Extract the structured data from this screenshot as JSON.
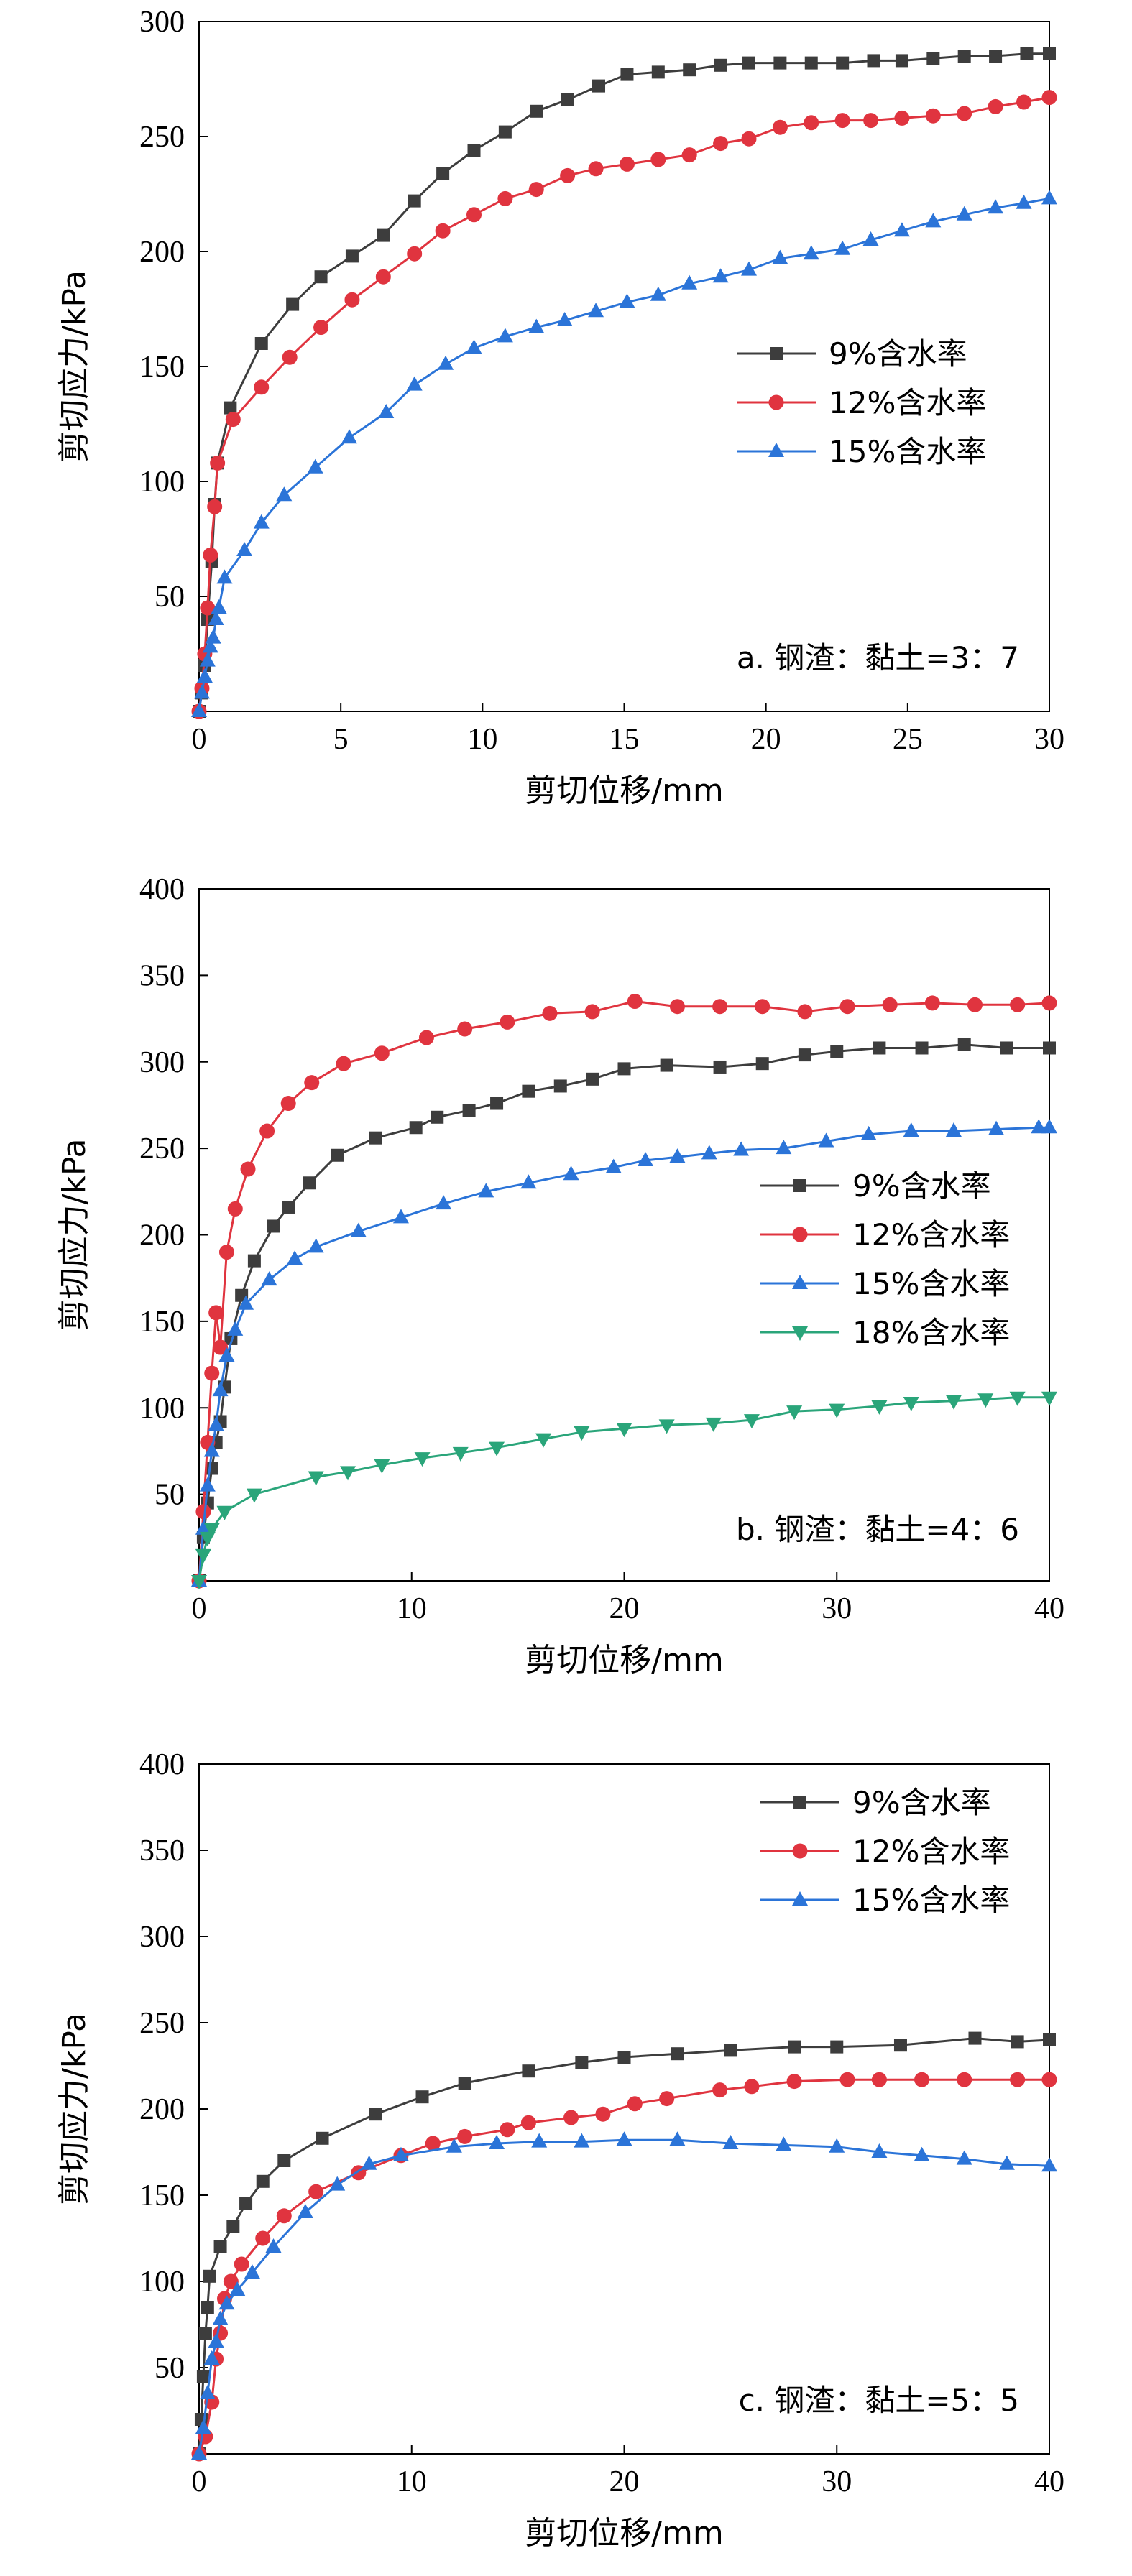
{
  "chart_data": [
    {
      "type": "line",
      "xlabel": "剪切位移/mm",
      "ylabel": "剪切应力/kPa",
      "xlim": [
        0,
        30
      ],
      "ylim": [
        0,
        300
      ],
      "xticks": [
        0,
        5,
        10,
        15,
        20,
        25,
        30
      ],
      "yticks": [
        50,
        100,
        150,
        200,
        250,
        300
      ],
      "annotation": "a. 钢渣：黏土=3：7",
      "legend_position": "center-right",
      "grid": false,
      "series": [
        {
          "name": "9%含水率",
          "color": "#3d3d3d",
          "marker": "square",
          "x": [
            0,
            0.1,
            0.2,
            0.3,
            0.45,
            0.55,
            0.65,
            1.1,
            2.2,
            3.3,
            4.3,
            5.4,
            6.5,
            7.6,
            8.6,
            9.7,
            10.8,
            11.9,
            13.0,
            14.1,
            15.1,
            16.2,
            17.3,
            18.4,
            19.4,
            20.5,
            21.6,
            22.7,
            23.8,
            24.8,
            25.9,
            27.0,
            28.1,
            29.2,
            30.0
          ],
          "y": [
            0,
            8,
            20,
            40,
            65,
            90,
            108,
            132,
            160,
            177,
            189,
            198,
            207,
            222,
            234,
            244,
            252,
            261,
            266,
            272,
            277,
            278,
            279,
            281,
            282,
            282,
            282,
            282,
            283,
            283,
            284,
            285,
            285,
            286,
            286
          ]
        },
        {
          "name": "12%含水率",
          "color": "#e0343f",
          "marker": "circle",
          "x": [
            0,
            0.1,
            0.2,
            0.3,
            0.4,
            0.55,
            0.65,
            1.2,
            2.2,
            3.2,
            4.3,
            5.4,
            6.5,
            7.6,
            8.6,
            9.7,
            10.8,
            11.9,
            13.0,
            14.0,
            15.1,
            16.2,
            17.3,
            18.4,
            19.4,
            20.5,
            21.6,
            22.7,
            23.7,
            24.8,
            25.9,
            27.0,
            28.1,
            29.1,
            30.0
          ],
          "y": [
            0,
            10,
            25,
            45,
            68,
            89,
            108,
            127,
            141,
            154,
            167,
            179,
            189,
            199,
            209,
            216,
            223,
            227,
            233,
            236,
            238,
            240,
            242,
            247,
            249,
            254,
            256,
            257,
            257,
            258,
            259,
            260,
            263,
            265,
            267
          ]
        },
        {
          "name": "15%含水率",
          "color": "#2b74d8",
          "marker": "triangle",
          "x": [
            0,
            0.1,
            0.2,
            0.3,
            0.4,
            0.5,
            0.6,
            0.7,
            0.9,
            1.6,
            2.2,
            3.0,
            4.1,
            5.3,
            6.6,
            7.6,
            8.7,
            9.7,
            10.8,
            11.9,
            12.9,
            14.0,
            15.1,
            16.2,
            17.3,
            18.4,
            19.4,
            20.5,
            21.6,
            22.7,
            23.7,
            24.8,
            25.9,
            27.0,
            28.1,
            29.1,
            30.0
          ],
          "y": [
            0,
            8,
            15,
            22,
            28,
            32,
            40,
            45,
            58,
            70,
            82,
            94,
            106,
            119,
            130,
            142,
            151,
            158,
            163,
            167,
            170,
            174,
            178,
            181,
            186,
            189,
            192,
            197,
            199,
            201,
            205,
            209,
            213,
            216,
            219,
            221,
            223
          ]
        }
      ]
    },
    {
      "type": "line",
      "xlabel": "剪切位移/mm",
      "ylabel": "剪切应力/kPa",
      "xlim": [
        0,
        40
      ],
      "ylim": [
        0,
        400
      ],
      "xticks": [
        0,
        10,
        20,
        30,
        40
      ],
      "yticks": [
        50,
        100,
        150,
        200,
        250,
        300,
        350,
        400
      ],
      "annotation": "b. 钢渣：黏土=4：6",
      "legend_position": "center-right",
      "grid": false,
      "series": [
        {
          "name": "9%含水率",
          "color": "#3d3d3d",
          "marker": "square",
          "x": [
            0,
            0.2,
            0.4,
            0.6,
            0.8,
            1.0,
            1.2,
            1.5,
            2.0,
            2.6,
            3.5,
            4.2,
            5.2,
            6.5,
            8.3,
            10.2,
            11.2,
            12.7,
            14.0,
            15.5,
            17.0,
            18.5,
            20.0,
            22.0,
            24.5,
            26.5,
            28.5,
            30.0,
            32.0,
            34.0,
            36.0,
            38.0,
            40.0
          ],
          "y": [
            0,
            25,
            45,
            65,
            80,
            92,
            112,
            140,
            165,
            185,
            205,
            216,
            230,
            246,
            256,
            262,
            268,
            272,
            276,
            283,
            286,
            290,
            296,
            298,
            297,
            299,
            304,
            306,
            308,
            308,
            310,
            308,
            308
          ]
        },
        {
          "name": "12%含水率",
          "color": "#e0343f",
          "marker": "circle",
          "x": [
            0,
            0.2,
            0.4,
            0.6,
            0.8,
            1.0,
            1.3,
            1.7,
            2.3,
            3.2,
            4.2,
            5.3,
            6.8,
            8.6,
            10.7,
            12.5,
            14.5,
            16.5,
            18.5,
            20.5,
            22.5,
            24.5,
            26.5,
            28.5,
            30.5,
            32.5,
            34.5,
            36.5,
            38.5,
            40.0
          ],
          "y": [
            0,
            40,
            80,
            120,
            155,
            135,
            190,
            215,
            238,
            260,
            276,
            288,
            299,
            305,
            314,
            319,
            323,
            328,
            329,
            335,
            332,
            332,
            332,
            329,
            332,
            333,
            334,
            333,
            333,
            334
          ]
        },
        {
          "name": "15%含水率",
          "color": "#2b74d8",
          "marker": "triangle",
          "x": [
            0,
            0.2,
            0.4,
            0.6,
            0.8,
            1.0,
            1.3,
            1.7,
            2.2,
            3.3,
            4.5,
            5.5,
            7.5,
            9.5,
            11.5,
            13.5,
            15.5,
            17.5,
            19.5,
            21.0,
            22.5,
            24.0,
            25.5,
            27.5,
            29.5,
            31.5,
            33.5,
            35.5,
            37.5,
            39.5,
            40.0
          ],
          "y": [
            0,
            30,
            55,
            75,
            90,
            110,
            130,
            145,
            160,
            174,
            186,
            193,
            202,
            210,
            218,
            225,
            230,
            235,
            239,
            243,
            245,
            247,
            249,
            250,
            254,
            258,
            260,
            260,
            261,
            262,
            262
          ]
        },
        {
          "name": "18%含水率",
          "color": "#2aa57a",
          "marker": "triangle-down",
          "x": [
            0,
            0.2,
            0.4,
            0.6,
            1.2,
            2.6,
            5.5,
            7.0,
            8.6,
            10.5,
            12.3,
            14.0,
            16.2,
            18.0,
            20.0,
            22.0,
            24.2,
            26.0,
            28.0,
            30.0,
            32.0,
            33.5,
            35.5,
            37.0,
            38.5,
            40.0
          ],
          "y": [
            0,
            15,
            25,
            30,
            40,
            50,
            60,
            63,
            67,
            71,
            74,
            77,
            82,
            86,
            88,
            90,
            91,
            93,
            98,
            99,
            101,
            103,
            104,
            105,
            106,
            106
          ]
        }
      ]
    },
    {
      "type": "line",
      "xlabel": "剪切位移/mm",
      "ylabel": "剪切应力/kPa",
      "xlim": [
        0,
        40
      ],
      "ylim": [
        0,
        400
      ],
      "xticks": [
        0,
        10,
        20,
        30,
        40
      ],
      "yticks": [
        50,
        100,
        150,
        200,
        250,
        300,
        350,
        400
      ],
      "annotation": "c. 钢渣：黏土=5：5",
      "legend_position": "top-right",
      "grid": false,
      "series": [
        {
          "name": "9%含水率",
          "color": "#3d3d3d",
          "marker": "square",
          "x": [
            0,
            0.1,
            0.2,
            0.3,
            0.4,
            0.5,
            1.0,
            1.6,
            2.2,
            3.0,
            4.0,
            5.8,
            8.3,
            10.5,
            12.5,
            15.5,
            18.0,
            20.0,
            22.5,
            25.0,
            28.0,
            30.0,
            33.0,
            36.5,
            38.5,
            40.0
          ],
          "y": [
            0,
            20,
            45,
            70,
            85,
            103,
            120,
            132,
            145,
            158,
            170,
            183,
            197,
            207,
            215,
            222,
            227,
            230,
            232,
            234,
            236,
            236,
            237,
            241,
            239,
            240
          ]
        },
        {
          "name": "12%含水率",
          "color": "#e0343f",
          "marker": "circle",
          "x": [
            0,
            0.3,
            0.6,
            0.8,
            1.0,
            1.2,
            1.5,
            2.0,
            3.0,
            4.0,
            5.5,
            7.5,
            9.5,
            11.0,
            12.5,
            14.5,
            15.5,
            17.5,
            19.0,
            20.5,
            22.0,
            24.5,
            26.0,
            28.0,
            30.5,
            32.0,
            34.0,
            36.0,
            38.5,
            40.0
          ],
          "y": [
            0,
            10,
            30,
            55,
            70,
            90,
            100,
            110,
            125,
            138,
            152,
            163,
            173,
            180,
            184,
            188,
            192,
            195,
            197,
            203,
            206,
            211,
            213,
            216,
            217,
            217,
            217,
            217,
            217,
            217
          ]
        },
        {
          "name": "15%含水率",
          "color": "#2b74d8",
          "marker": "triangle",
          "x": [
            0,
            0.2,
            0.4,
            0.6,
            0.8,
            1.0,
            1.3,
            1.8,
            2.5,
            3.5,
            5.0,
            6.5,
            8.0,
            9.5,
            12.0,
            14.0,
            16.0,
            18.0,
            20.0,
            22.5,
            25.0,
            27.5,
            30.0,
            32.0,
            34.0,
            36.0,
            38.0,
            40.0
          ],
          "y": [
            0,
            15,
            35,
            55,
            65,
            78,
            87,
            95,
            105,
            120,
            140,
            156,
            168,
            173,
            178,
            180,
            181,
            181,
            182,
            182,
            180,
            179,
            178,
            175,
            173,
            171,
            168,
            167
          ]
        }
      ]
    }
  ]
}
